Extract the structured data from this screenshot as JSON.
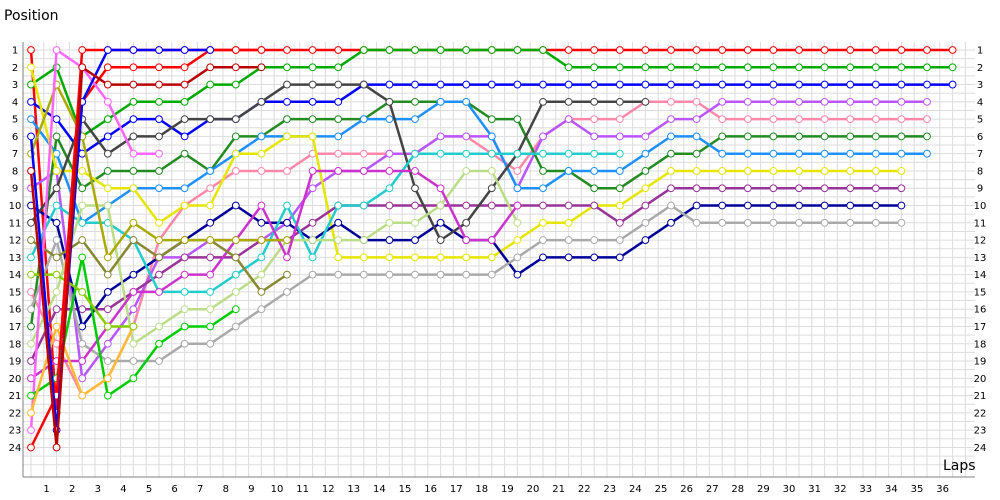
{
  "chart_data": {
    "type": "line",
    "title": "",
    "xlabel": "Laps",
    "ylabel": "Position",
    "x_ticks": [
      1,
      2,
      3,
      4,
      5,
      6,
      7,
      8,
      9,
      10,
      11,
      12,
      13,
      14,
      15,
      16,
      17,
      18,
      19,
      20,
      21,
      22,
      23,
      24,
      25,
      26,
      27,
      28,
      29,
      30,
      31,
      32,
      33,
      34,
      35,
      36
    ],
    "y_ticks": [
      1,
      2,
      3,
      4,
      5,
      6,
      7,
      8,
      9,
      10,
      11,
      12,
      13,
      14,
      15,
      16,
      17,
      18,
      19,
      20,
      21,
      22,
      23,
      24
    ],
    "xlim": [
      0,
      37
    ],
    "ylim": [
      24,
      1
    ],
    "grid": true,
    "legend": "none",
    "series": [
      {
        "color": "#ff0000",
        "start": 0,
        "values": [
          1,
          22,
          4,
          2,
          2,
          2,
          2,
          1,
          1,
          1,
          1,
          1,
          1,
          1,
          1,
          1,
          1,
          1,
          1,
          1,
          1,
          1,
          1,
          1,
          1,
          1,
          1,
          1,
          1,
          1,
          1,
          1,
          1,
          1,
          1,
          1,
          1
        ]
      },
      {
        "color": "#00aa00",
        "start": 0,
        "values": [
          3,
          2,
          6,
          5,
          4,
          4,
          4,
          3,
          3,
          2,
          2,
          2,
          2,
          1,
          1,
          1,
          1,
          1,
          1,
          1,
          1,
          2,
          2,
          2,
          2,
          2,
          2,
          2,
          2,
          2,
          2,
          2,
          2,
          2,
          2,
          2,
          2
        ]
      },
      {
        "color": "#0000ff",
        "start": 0,
        "values": [
          4,
          5,
          7,
          6,
          5,
          5,
          6,
          5,
          5,
          4,
          4,
          4,
          4,
          3,
          3,
          3,
          3,
          3,
          3,
          3,
          3,
          3,
          3,
          3,
          3,
          3,
          3,
          3,
          3,
          3,
          3,
          3,
          3,
          3,
          3,
          3,
          3
        ]
      },
      {
        "color": "#ff88aa",
        "start": 0,
        "values": [
          15,
          18,
          21,
          20,
          17,
          12,
          10,
          9,
          8,
          8,
          8,
          7,
          7,
          7,
          7,
          7,
          6,
          6,
          7,
          8,
          6,
          5,
          5,
          5,
          4,
          4,
          4,
          5,
          5,
          5,
          5,
          5,
          5,
          5,
          5,
          5
        ]
      },
      {
        "color": "#bb55ff",
        "start": 0,
        "values": [
          9,
          8,
          20,
          18,
          16,
          13,
          13,
          12,
          12,
          12,
          11,
          9,
          8,
          8,
          7,
          7,
          6,
          6,
          6,
          9,
          6,
          5,
          6,
          6,
          6,
          5,
          5,
          4,
          4,
          4,
          4,
          4,
          4,
          4,
          4,
          4
        ]
      },
      {
        "color": "#228b22",
        "start": 0,
        "values": [
          17,
          6,
          9,
          8,
          8,
          8,
          7,
          8,
          6,
          6,
          5,
          5,
          5,
          5,
          4,
          4,
          4,
          4,
          5,
          5,
          8,
          8,
          9,
          9,
          8,
          7,
          7,
          6,
          6,
          6,
          6,
          6,
          6,
          6,
          6,
          6
        ]
      },
      {
        "color": "#1e90ff",
        "start": 0,
        "values": [
          5,
          7,
          11,
          10,
          9,
          9,
          9,
          8,
          7,
          6,
          6,
          6,
          6,
          5,
          5,
          5,
          4,
          4,
          6,
          9,
          9,
          8,
          8,
          8,
          7,
          6,
          6,
          7,
          7,
          7,
          7,
          7,
          7,
          7,
          7,
          7
        ]
      },
      {
        "color": "#e6e600",
        "start": 0,
        "values": [
          2,
          8,
          8,
          9,
          9,
          11,
          10,
          10,
          7,
          7,
          6,
          6,
          13,
          13,
          13,
          13,
          13,
          13,
          13,
          12,
          11,
          11,
          10,
          10,
          9,
          8,
          8,
          8,
          8,
          8,
          8,
          8,
          8,
          8,
          8
        ]
      },
      {
        "color": "#993399",
        "start": 0,
        "values": [
          19,
          16,
          16,
          16,
          15,
          14,
          13,
          13,
          13,
          12,
          12,
          11,
          10,
          10,
          10,
          10,
          10,
          10,
          10,
          10,
          10,
          10,
          10,
          11,
          10,
          9,
          9,
          9,
          9,
          9,
          9,
          9,
          9,
          9,
          9
        ]
      },
      {
        "color": "#000099",
        "start": 0,
        "values": [
          10,
          11,
          17,
          15,
          14,
          13,
          12,
          11,
          10,
          11,
          11,
          12,
          11,
          12,
          12,
          12,
          11,
          12,
          12,
          14,
          13,
          13,
          13,
          13,
          12,
          11,
          10,
          10,
          10,
          10,
          10,
          10,
          10,
          10,
          10
        ]
      },
      {
        "color": "#aaaaaa",
        "start": 0,
        "values": [
          16,
          12,
          18,
          19,
          19,
          19,
          18,
          18,
          17,
          16,
          15,
          14,
          14,
          14,
          14,
          14,
          14,
          14,
          14,
          13,
          12,
          12,
          12,
          12,
          11,
          10,
          11,
          11,
          11,
          11,
          11,
          11,
          11,
          11,
          11
        ]
      },
      {
        "color": "#444444",
        "start": 0,
        "values": [
          11,
          9,
          5,
          7,
          6,
          6,
          5,
          5,
          5,
          4,
          3,
          3,
          3,
          3,
          4,
          9,
          12,
          11,
          9,
          7,
          4,
          4,
          4,
          4,
          4
        ]
      },
      {
        "color": "#22cccc",
        "start": 0,
        "values": [
          13,
          10,
          11,
          11,
          12,
          15,
          15,
          15,
          14,
          13,
          10,
          13,
          10,
          10,
          9,
          7,
          7,
          7,
          7,
          7,
          7,
          7,
          7,
          7
        ]
      },
      {
        "color": "#bbdd88",
        "start": 0,
        "values": [
          18,
          15,
          10,
          10,
          18,
          17,
          16,
          16,
          15,
          14,
          12,
          12,
          12,
          12,
          11,
          11,
          10,
          8,
          8,
          11
        ]
      },
      {
        "color": "#cc33cc",
        "start": 0,
        "values": [
          20,
          19,
          19,
          17,
          15,
          15,
          14,
          14,
          12,
          10,
          13,
          8,
          8,
          8,
          8,
          8,
          9,
          12,
          12,
          10
        ]
      },
      {
        "color": "#888833",
        "start": 0,
        "values": [
          12,
          13,
          12,
          14,
          12,
          13,
          12,
          12,
          13,
          15,
          14
        ]
      },
      {
        "color": "#aaaa00",
        "start": 0,
        "values": [
          7,
          3,
          6,
          13,
          11,
          12,
          12,
          12,
          12,
          12,
          12
        ]
      },
      {
        "color": "#ff66ff",
        "start": 0,
        "values": [
          23,
          1,
          2,
          4,
          7,
          7
        ]
      },
      {
        "color": "#00cc00",
        "start": 0,
        "values": [
          21,
          20,
          13,
          21,
          20,
          18,
          17,
          17,
          16
        ]
      },
      {
        "color": "#ffbb33",
        "start": 0,
        "values": [
          22,
          17,
          21,
          20,
          17
        ]
      },
      {
        "color": "#88cc00",
        "start": 0,
        "values": [
          14,
          14,
          15,
          17,
          17
        ]
      },
      {
        "color": "#ff0000",
        "start": 0,
        "values": [
          24,
          21,
          1,
          1,
          1,
          1,
          1,
          1,
          1,
          1
        ]
      },
      {
        "color": "#0000ff",
        "start": 0,
        "values": [
          6,
          23,
          4,
          1,
          1,
          1,
          1,
          1
        ]
      },
      {
        "color": "#bb0000",
        "start": 0,
        "values": [
          8,
          24,
          2,
          3,
          3,
          3,
          3,
          2,
          2,
          2
        ]
      }
    ]
  }
}
